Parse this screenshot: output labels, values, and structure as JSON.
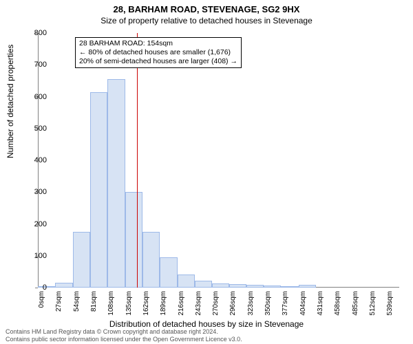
{
  "title": "28, BARHAM ROAD, STEVENAGE, SG2 9HX",
  "subtitle": "Size of property relative to detached houses in Stevenage",
  "y_axis_label": "Number of detached properties",
  "x_axis_label": "Distribution of detached houses by size in Stevenage",
  "footer_line1": "Contains HM Land Registry data © Crown copyright and database right 2024.",
  "footer_line2": "Contains public sector information licensed under the Open Government Licence v3.0.",
  "chart": {
    "type": "histogram",
    "ylim": [
      0,
      800
    ],
    "ytick_step": 100,
    "xlim": [
      0,
      560
    ],
    "xtick_step": 27,
    "xtick_labels": [
      "0sqm",
      "27sqm",
      "54sqm",
      "81sqm",
      "108sqm",
      "135sqm",
      "162sqm",
      "189sqm",
      "216sqm",
      "243sqm",
      "270sqm",
      "296sqm",
      "323sqm",
      "350sqm",
      "377sqm",
      "404sqm",
      "431sqm",
      "458sqm",
      "485sqm",
      "512sqm",
      "539sqm"
    ],
    "bar_fill": "#d7e3f4",
    "bar_stroke": "#9db9e8",
    "axis_color": "#808080",
    "background_color": "#ffffff",
    "bins": [
      {
        "x": 0,
        "count": 5
      },
      {
        "x": 27,
        "count": 15
      },
      {
        "x": 54,
        "count": 175
      },
      {
        "x": 81,
        "count": 615
      },
      {
        "x": 108,
        "count": 655
      },
      {
        "x": 135,
        "count": 300
      },
      {
        "x": 162,
        "count": 175
      },
      {
        "x": 189,
        "count": 95
      },
      {
        "x": 216,
        "count": 42
      },
      {
        "x": 243,
        "count": 22
      },
      {
        "x": 270,
        "count": 12
      },
      {
        "x": 296,
        "count": 10
      },
      {
        "x": 323,
        "count": 8
      },
      {
        "x": 350,
        "count": 6
      },
      {
        "x": 377,
        "count": 4
      },
      {
        "x": 404,
        "count": 8
      },
      {
        "x": 431,
        "count": 0
      },
      {
        "x": 458,
        "count": 0
      },
      {
        "x": 485,
        "count": 0
      },
      {
        "x": 512,
        "count": 0
      },
      {
        "x": 539,
        "count": 0
      }
    ],
    "marker": {
      "x": 154,
      "color": "#cc0000"
    },
    "annotation": {
      "line1": "28 BARHAM ROAD: 154sqm",
      "line2": "← 80% of detached houses are smaller (1,676)",
      "line3": "20% of semi-detached houses are larger (408) →"
    }
  }
}
